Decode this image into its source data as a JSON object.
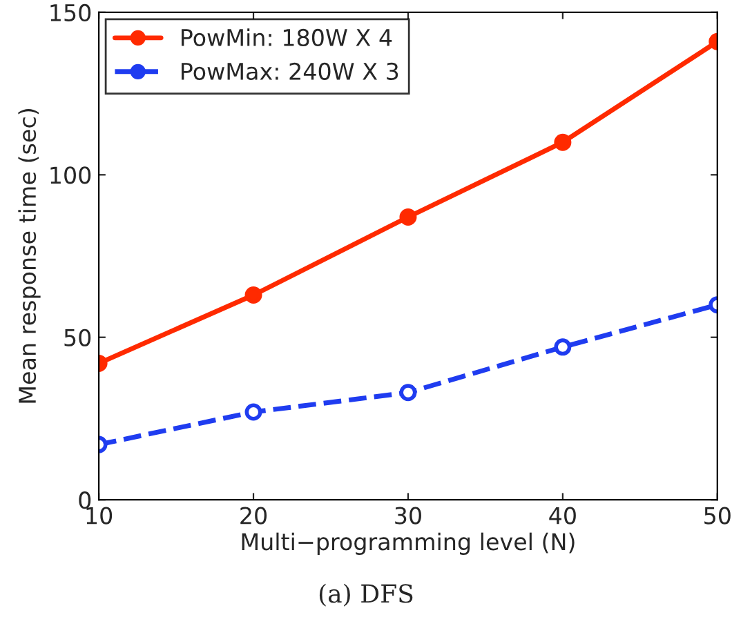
{
  "chart_data": {
    "type": "line",
    "xlabel": "Multi−programming level (N)",
    "ylabel": "Mean response time (sec)",
    "x": [
      10,
      20,
      30,
      40,
      50
    ],
    "series": [
      {
        "name": "PowMin: 180W X 4",
        "color": "#ff2a00",
        "values": [
          42,
          63,
          87,
          110,
          141
        ],
        "line_style": "solid"
      },
      {
        "name": "PowMax: 240W X 3",
        "color": "#1f3cf0",
        "values": [
          17,
          27,
          33,
          47,
          60
        ],
        "line_style": "dashed"
      }
    ],
    "xlim": [
      10,
      50
    ],
    "xticks": [
      10,
      20,
      30,
      40,
      50
    ],
    "ylim": [
      0,
      150
    ],
    "yticks": [
      0,
      50,
      100,
      150
    ],
    "marker": "circle",
    "legend": "top left",
    "grid": false,
    "annotations": [
      "(a) DFS"
    ]
  }
}
